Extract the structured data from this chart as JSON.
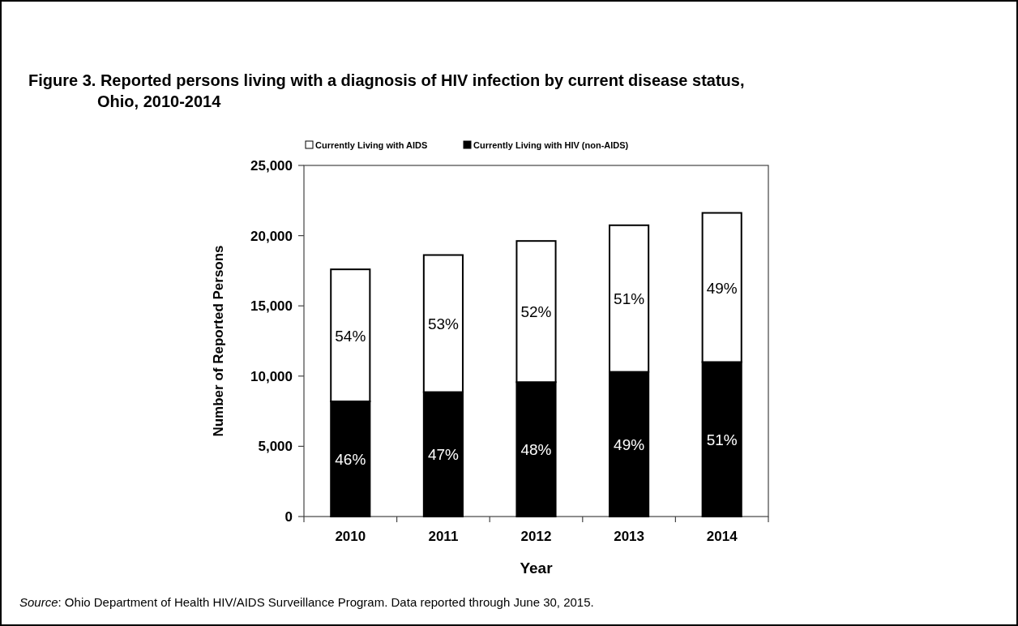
{
  "chart_data": {
    "type": "bar",
    "title": "Figure 3. Reported persons living with a diagnosis of HIV infection by current disease status, Ohio, 2010-2014",
    "xlabel": "Year",
    "ylabel": "Number of Reported Persons",
    "categories": [
      "2010",
      "2011",
      "2012",
      "2013",
      "2014"
    ],
    "stacked": true,
    "series": [
      {
        "name": "Currently Living with HIV  (non-AIDS)",
        "color": "#000000",
        "values": [
          8200,
          8860,
          9570,
          10300,
          11000
        ]
      },
      {
        "name": "Currently Living with AIDS",
        "color": "#ffffff",
        "values": [
          9400,
          9760,
          10050,
          10440,
          10620
        ]
      }
    ],
    "ylim": [
      0,
      25000
    ],
    "yticks": [
      0,
      {
        "value": 5000,
        "label": "5,000"
      },
      {
        "value": 10000,
        "label": "10,000"
      },
      {
        "value": 15000,
        "label": "15,000"
      },
      {
        "value": 20000,
        "label": "20,000"
      },
      {
        "value": 25000,
        "label": "25,000"
      }
    ],
    "grid": false,
    "legend": "top",
    "annotations": [
      "46%",
      "47%",
      "48%",
      "49%",
      "51%",
      "54%",
      "53%",
      "52%",
      "51%",
      "49%",
      "Source: Ohio Department of Health HIV/AIDS Surveillance Program.  Data reported through June 30, 2015."
    ]
  }
}
